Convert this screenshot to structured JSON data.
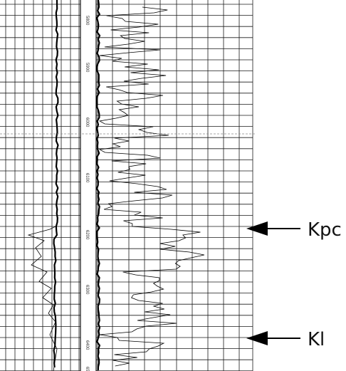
{
  "well_log": {
    "depth_labels": [
      "5800",
      "5900",
      "6000",
      "6100",
      "6200",
      "6300",
      "6400",
      "6500"
    ],
    "markers": [
      {
        "label": "Kpc"
      },
      {
        "label": "Kl"
      }
    ],
    "colors": {
      "grid": "#1a1a1a",
      "curve": "#000000",
      "background": "#ffffff"
    }
  }
}
